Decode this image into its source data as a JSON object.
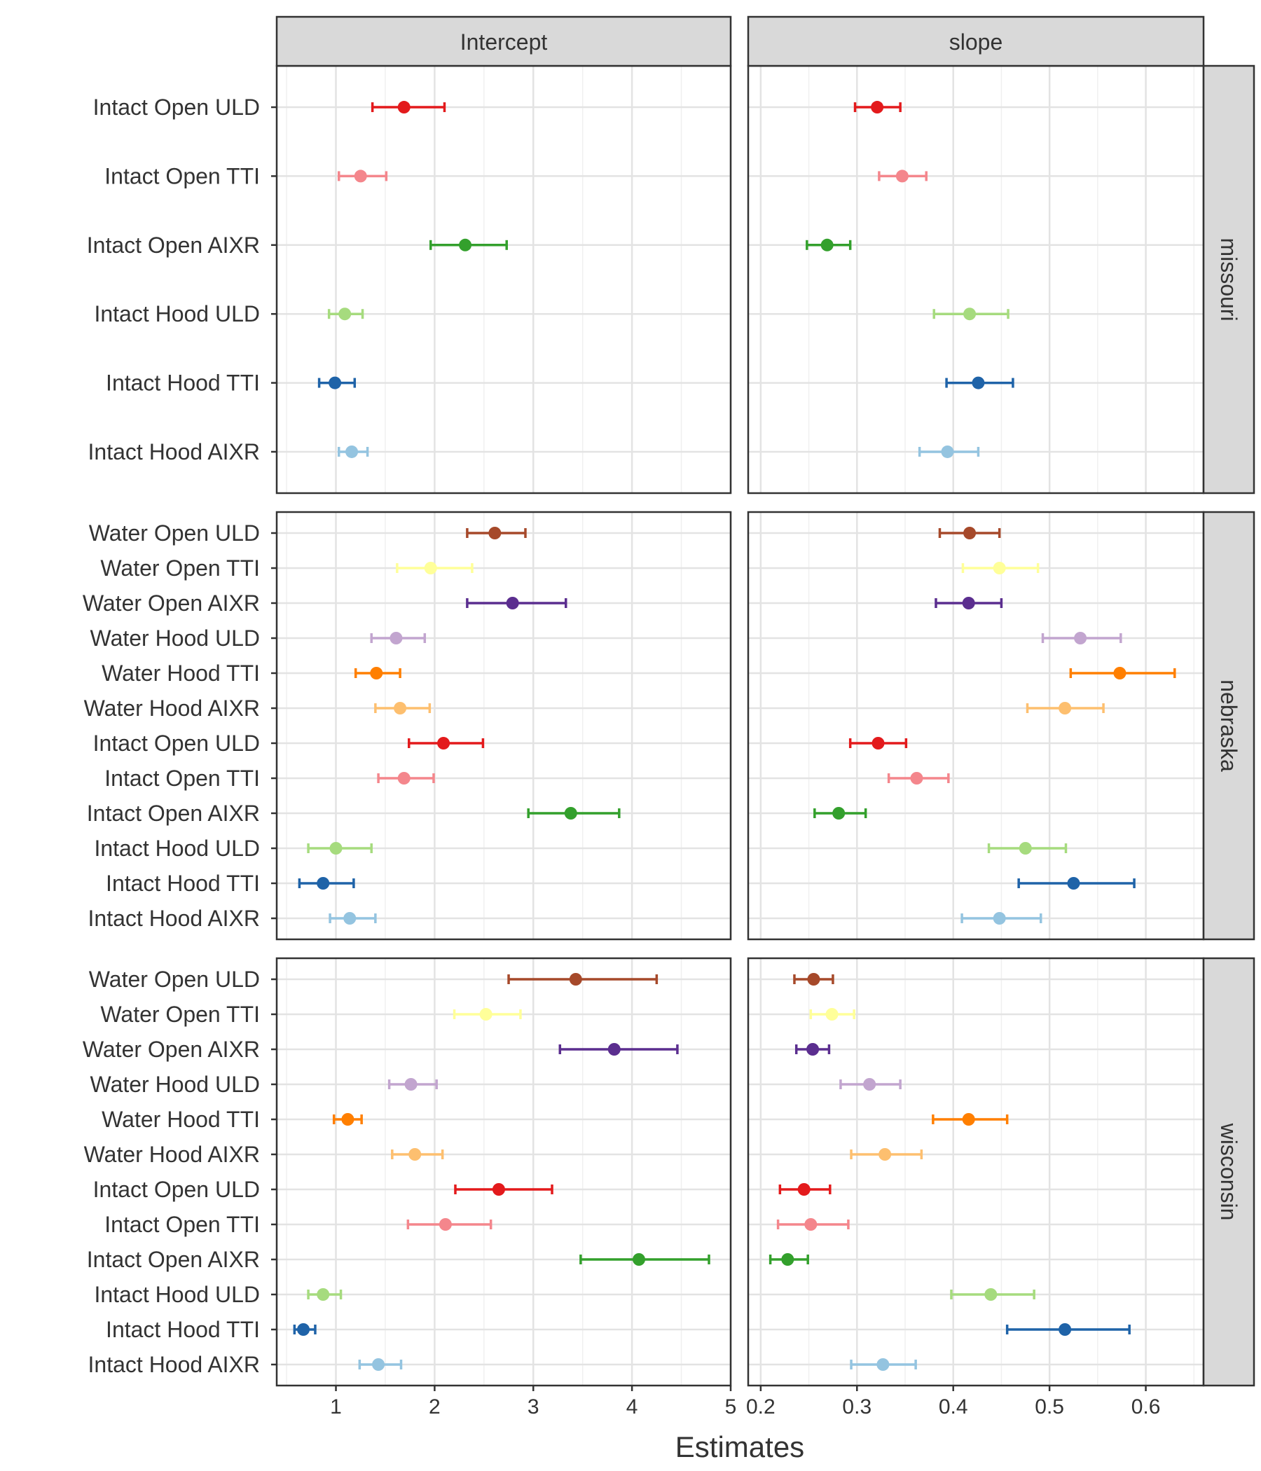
{
  "chart_data": {
    "type": "scatter",
    "subtype": "point-range facet grid",
    "xlabel": "Estimates",
    "ylabel": "",
    "columns": [
      {
        "label": "Intercept",
        "xlim": [
          0.4,
          5
        ],
        "ticks": [
          1,
          2,
          3,
          4,
          5
        ]
      },
      {
        "label": "slope",
        "xlim": [
          0.187,
          0.66
        ],
        "ticks": [
          0.2,
          0.3,
          0.4,
          0.5,
          0.6
        ]
      }
    ],
    "treatment_colors": {
      "Water Open ULD": "#A6492A",
      "Water Open TTI": "#FFFF99",
      "Water Open AIXR": "#5B2E8F",
      "Water Hood ULD": "#C2A5CF",
      "Water Hood TTI": "#FF7F00",
      "Water Hood AIXR": "#FDBF6F",
      "Intact Open ULD": "#E31A1C",
      "Intact Open TTI": "#F4868C",
      "Intact Open AIXR": "#33A02C",
      "Intact Hood ULD": "#A6DB7E",
      "Intact Hood TTI": "#1F63A8",
      "Intact Hood AIXR": "#94C4E0"
    },
    "rows": [
      {
        "label": "missouri",
        "categories": [
          "Intact Open ULD",
          "Intact Open TTI",
          "Intact Open AIXR",
          "Intact Hood ULD",
          "Intact Hood TTI",
          "Intact Hood AIXR"
        ],
        "series": [
          {
            "name": "Intercept",
            "estimate": [
              1.69,
              1.25,
              2.31,
              1.09,
              0.99,
              1.16
            ],
            "lower": [
              1.37,
              1.03,
              1.96,
              0.93,
              0.83,
              1.03
            ],
            "upper": [
              2.1,
              1.51,
              2.73,
              1.27,
              1.19,
              1.32
            ]
          },
          {
            "name": "slope",
            "estimate": [
              0.321,
              0.347,
              0.269,
              0.417,
              0.426,
              0.394
            ],
            "lower": [
              0.298,
              0.323,
              0.248,
              0.38,
              0.393,
              0.365
            ],
            "upper": [
              0.345,
              0.372,
              0.293,
              0.457,
              0.462,
              0.426
            ]
          }
        ]
      },
      {
        "label": "nebraska",
        "categories": [
          "Water Open ULD",
          "Water Open TTI",
          "Water Open AIXR",
          "Water Hood ULD",
          "Water Hood TTI",
          "Water Hood AIXR",
          "Intact Open ULD",
          "Intact Open TTI",
          "Intact Open AIXR",
          "Intact Hood ULD",
          "Intact Hood TTI",
          "Intact Hood AIXR"
        ],
        "series": [
          {
            "name": "Intercept",
            "estimate": [
              2.61,
              1.96,
              2.79,
              1.61,
              1.41,
              1.65,
              2.09,
              1.69,
              3.38,
              1.0,
              0.87,
              1.14
            ],
            "lower": [
              2.33,
              1.62,
              2.33,
              1.36,
              1.2,
              1.4,
              1.74,
              1.43,
              2.95,
              0.72,
              0.63,
              0.94
            ],
            "upper": [
              2.92,
              2.38,
              3.33,
              1.9,
              1.65,
              1.95,
              2.49,
              1.99,
              3.87,
              1.36,
              1.18,
              1.4
            ]
          },
          {
            "name": "slope",
            "estimate": [
              0.417,
              0.448,
              0.416,
              0.532,
              0.573,
              0.516,
              0.322,
              0.362,
              0.281,
              0.475,
              0.525,
              0.448
            ],
            "lower": [
              0.386,
              0.41,
              0.382,
              0.493,
              0.522,
              0.477,
              0.293,
              0.333,
              0.256,
              0.437,
              0.468,
              0.409
            ],
            "upper": [
              0.448,
              0.488,
              0.45,
              0.574,
              0.63,
              0.556,
              0.351,
              0.395,
              0.309,
              0.517,
              0.588,
              0.491
            ]
          }
        ]
      },
      {
        "label": "wisconsin",
        "categories": [
          "Water Open ULD",
          "Water Open TTI",
          "Water Open AIXR",
          "Water Hood ULD",
          "Water Hood TTI",
          "Water Hood AIXR",
          "Intact Open ULD",
          "Intact Open TTI",
          "Intact Open AIXR",
          "Intact Hood ULD",
          "Intact Hood TTI",
          "Intact Hood AIXR"
        ],
        "series": [
          {
            "name": "Intercept",
            "estimate": [
              3.43,
              2.52,
              3.82,
              1.76,
              1.12,
              1.8,
              2.65,
              2.11,
              4.07,
              0.87,
              0.67,
              1.43
            ],
            "lower": [
              2.75,
              2.2,
              3.27,
              1.54,
              0.98,
              1.57,
              2.21,
              1.73,
              3.48,
              0.72,
              0.58,
              1.24
            ],
            "upper": [
              4.25,
              2.87,
              4.46,
              2.02,
              1.26,
              2.08,
              3.19,
              2.57,
              4.78,
              1.05,
              0.79,
              1.66
            ]
          },
          {
            "name": "slope",
            "estimate": [
              0.255,
              0.274,
              0.254,
              0.313,
              0.416,
              0.329,
              0.245,
              0.252,
              0.228,
              0.439,
              0.516,
              0.327
            ],
            "lower": [
              0.235,
              0.252,
              0.237,
              0.283,
              0.379,
              0.294,
              0.22,
              0.218,
              0.21,
              0.398,
              0.456,
              0.294
            ],
            "upper": [
              0.275,
              0.297,
              0.271,
              0.345,
              0.456,
              0.367,
              0.272,
              0.291,
              0.249,
              0.484,
              0.583,
              0.361
            ]
          }
        ]
      }
    ],
    "grid": true,
    "legend": "none"
  }
}
